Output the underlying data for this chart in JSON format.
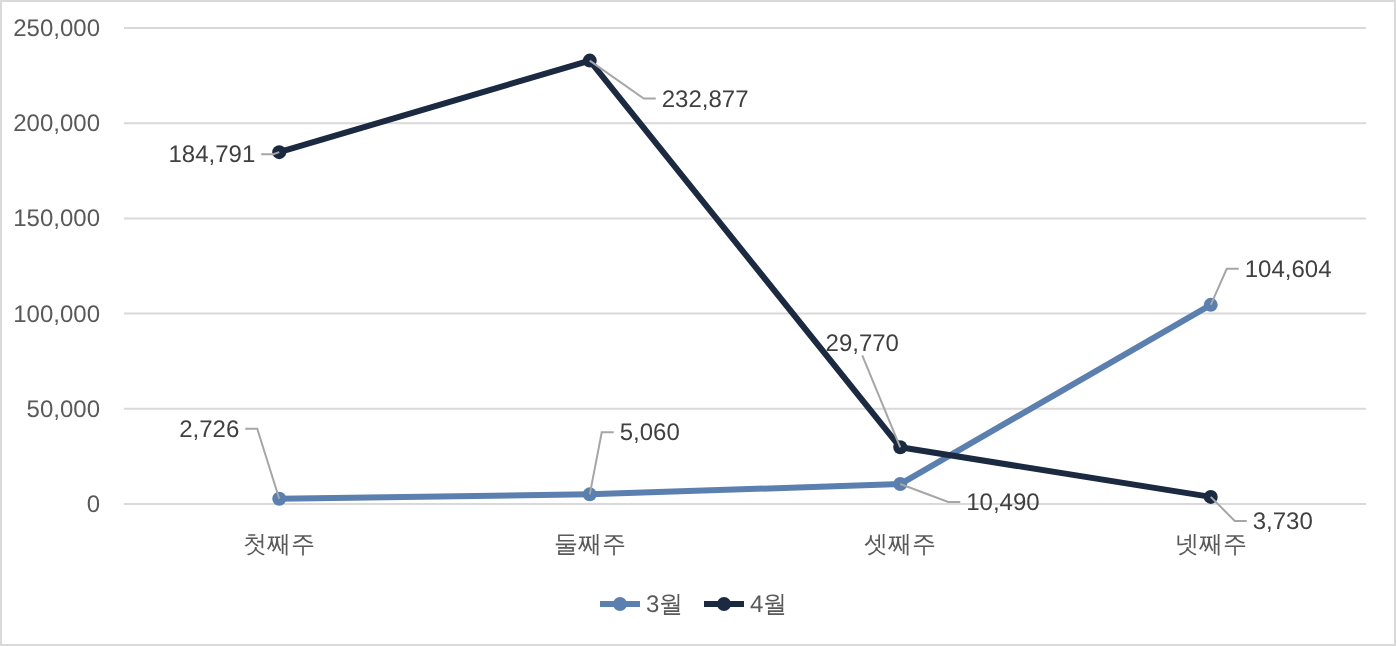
{
  "chart_data": {
    "type": "line",
    "categories": [
      "첫째주",
      "둘째주",
      "셋째주",
      "넷째주"
    ],
    "series": [
      {
        "name": "3월",
        "color": "#5b7fae",
        "values": [
          2726,
          5060,
          10490,
          104604
        ],
        "value_labels": [
          "2,726",
          "5,060",
          "10,490",
          "104,604"
        ]
      },
      {
        "name": "4월",
        "color": "#1b2a41",
        "values": [
          184791,
          232877,
          29770,
          3730
        ],
        "value_labels": [
          "184,791",
          "232,877",
          "29,770",
          "3,730"
        ]
      }
    ],
    "ylim": [
      0,
      250000
    ],
    "yticks": [
      {
        "value": 0,
        "label": "0"
      },
      {
        "value": 50000,
        "label": "50,000"
      },
      {
        "value": 100000,
        "label": "100,000"
      },
      {
        "value": 150000,
        "label": "150,000"
      },
      {
        "value": 200000,
        "label": "200,000"
      },
      {
        "value": 250000,
        "label": "250,000"
      }
    ],
    "grid": "y",
    "legend": "bottom",
    "marker": "circle"
  }
}
